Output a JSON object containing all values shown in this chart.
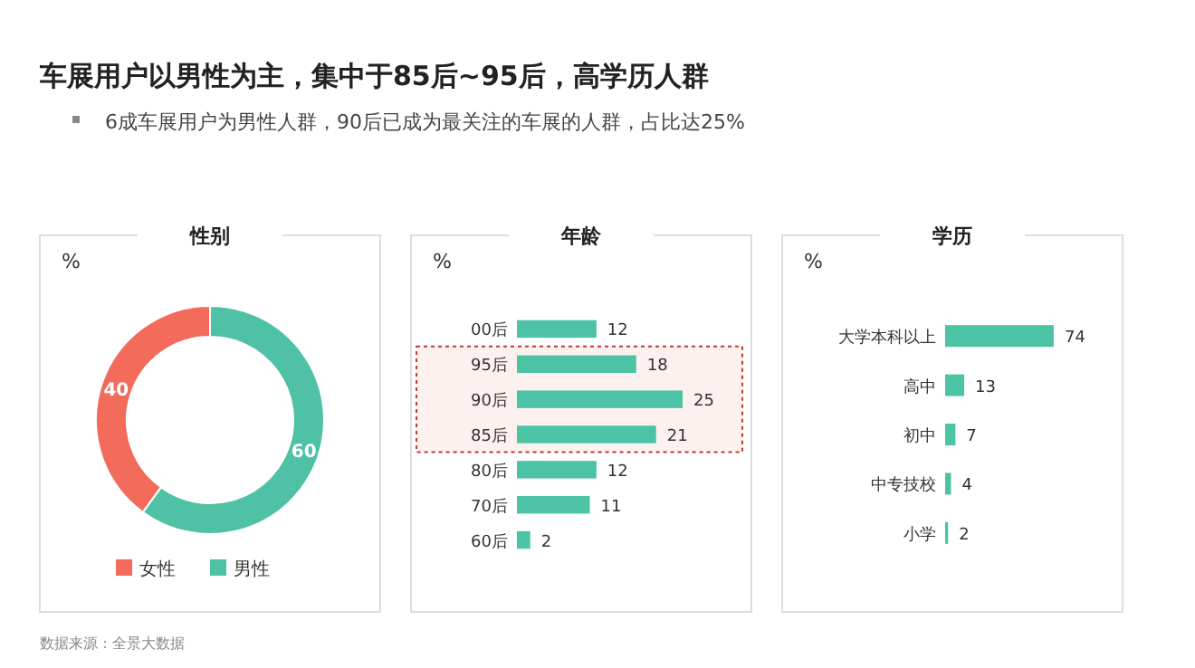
{
  "chart_data": [
    {
      "type": "other",
      "title": "车展用户以男性为主，集中于85后~95后，高学历人群",
      "subtitle": "6成车展用户为男性人群，90后已成为最关注的车展的人群，占比达25%",
      "annotations": [
        "数据来源：全景大数据"
      ]
    },
    {
      "type": "donut",
      "title": "性别",
      "annotations": [
        "%"
      ],
      "categories": [
        "女性",
        "男性"
      ],
      "values": [
        40,
        60
      ],
      "colors": [
        "#f26b5b",
        "#4fc1a4"
      ],
      "data_labels": true,
      "legend": "bottom"
    },
    {
      "type": "bar",
      "orientation": "horizontal",
      "title": "年龄",
      "annotations": [
        "%"
      ],
      "categories": [
        "00后",
        "95后",
        "90后",
        "85后",
        "80后",
        "70后",
        "60后"
      ],
      "values": [
        12,
        18,
        25,
        21,
        12,
        11,
        2
      ],
      "color": "#4cc3a5",
      "data_labels": true,
      "bands": [
        {
          "axis": "y",
          "from": "95后",
          "to": "85后",
          "color": "#c0392b"
        }
      ]
    },
    {
      "type": "bar",
      "orientation": "horizontal",
      "title": "学历",
      "annotations": [
        "%"
      ],
      "categories": [
        "大学本科以上",
        "高中",
        "初中",
        "中专技校",
        "小学"
      ],
      "values": [
        74,
        13,
        7,
        4,
        2
      ],
      "color": "#4cc3a5",
      "data_labels": true
    }
  ]
}
